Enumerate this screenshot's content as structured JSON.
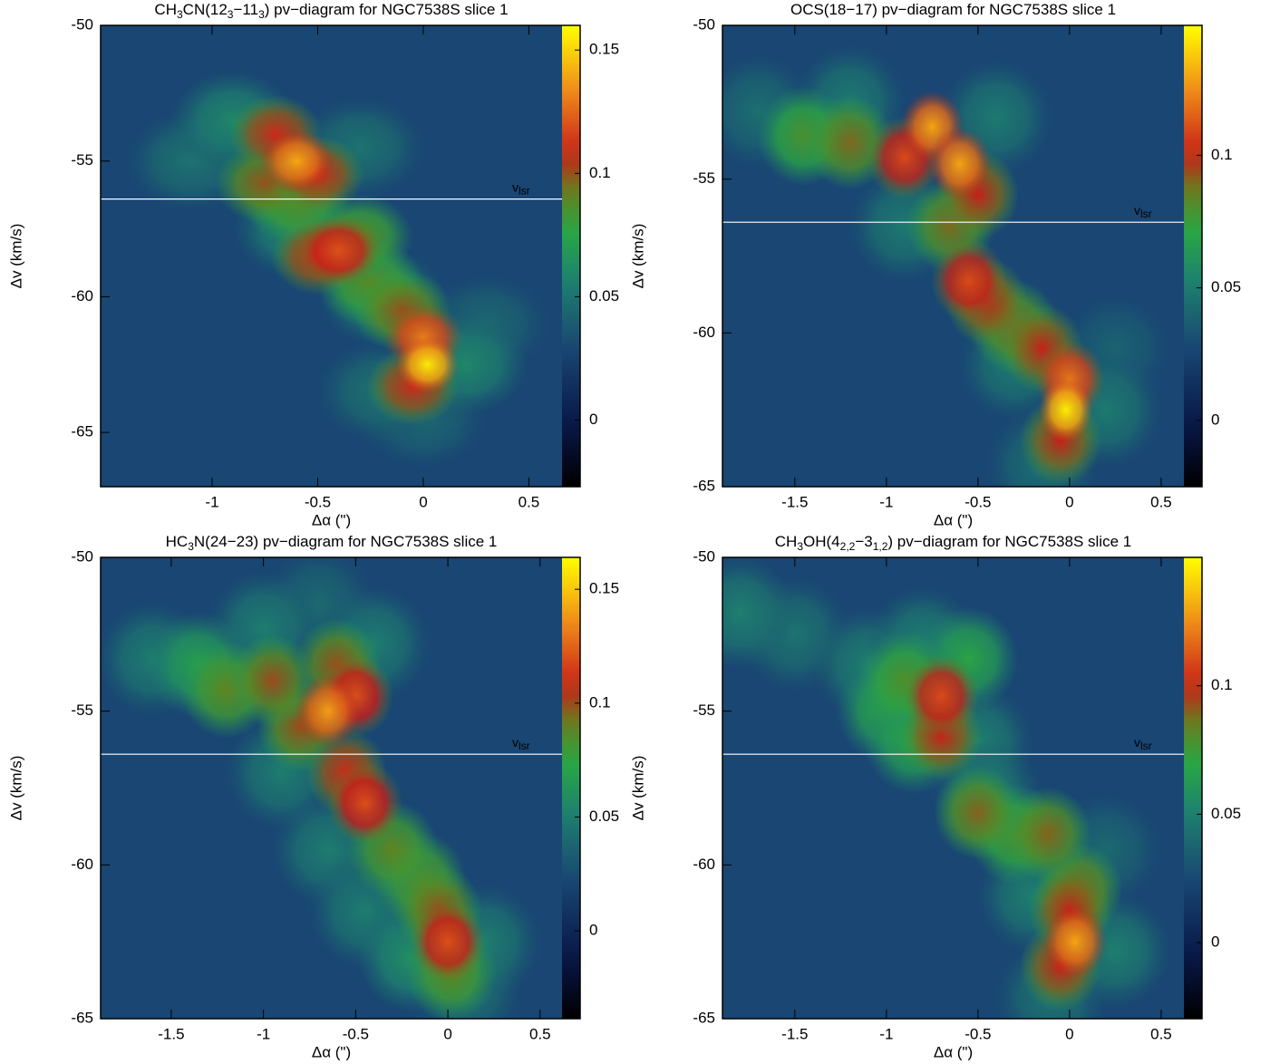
{
  "chart_data": [
    {
      "type": "heatmap",
      "title_parts": [
        {
          "text": "CH"
        },
        {
          "text": "3",
          "sub": true
        },
        {
          "text": "CN(12"
        },
        {
          "text": "3",
          "sub": true
        },
        {
          "text": "−11"
        },
        {
          "text": "3",
          "sub": true
        },
        {
          "text": ") pv−diagram for NGC7538S slice 1"
        }
      ],
      "xlabel": "Δα (\")",
      "ylabel": "Δv (km/s)",
      "xlim": [
        -1.528,
        0.657
      ],
      "ylim": [
        -50,
        -67
      ],
      "xticks": [
        -1,
        -0.5,
        0,
        0.5
      ],
      "yticks": [
        -50,
        -55,
        -60,
        -65
      ],
      "clim": [
        -0.027,
        0.16
      ],
      "cticks": [
        0,
        0.05,
        0.1,
        0.15
      ],
      "vlsr": {
        "value": -56.4,
        "label": "v",
        "label_sub": "lsr"
      },
      "points": {
        "x": [
          0.3,
          0,
          -0.3,
          -0.2,
          -1.1,
          0.2,
          -0.9,
          -0.2,
          -0.6,
          -0.25,
          -0.3,
          -0.6,
          -0.1,
          -0.75,
          -0.05,
          -0.5,
          -0.7,
          -0.5,
          -0.4,
          0,
          -0.6,
          0.02
        ],
        "y": [
          -61,
          -64.5,
          -54.5,
          -63.5,
          -55,
          -62.5,
          -53.5,
          -60,
          -57.5,
          -59.5,
          -57.8,
          -56.5,
          -60.5,
          -55.8,
          -63.3,
          -55.5,
          -54,
          -58.5,
          -58.3,
          -61.5,
          -55,
          -62.5
        ],
        "values": [
          0.045,
          0.045,
          0.05,
          0.05,
          0.05,
          0.06,
          0.06,
          0.06,
          0.06,
          0.09,
          0.09,
          0.09,
          0.1,
          0.1,
          0.11,
          0.11,
          0.11,
          0.11,
          0.12,
          0.13,
          0.14,
          0.155
        ]
      }
    },
    {
      "type": "heatmap",
      "title_parts": [
        {
          "text": "OCS(18−17) pv−diagram for NGC7538S slice 1"
        }
      ],
      "xlabel": "Δα (\")",
      "ylabel": "Δv (km/s)",
      "xlim": [
        -1.895,
        0.624
      ],
      "ylim": [
        -50,
        -65
      ],
      "xticks": [
        -1.5,
        -1,
        -0.5,
        0,
        0.5
      ],
      "yticks": [
        -50,
        -55,
        -60,
        -65
      ],
      "clim": [
        -0.025,
        0.149
      ],
      "cticks": [
        0,
        0.05,
        0.1
      ],
      "vlsr": {
        "value": -56.4,
        "label": "v",
        "label_sub": "lsr"
      },
      "points": {
        "x": [
          0.25,
          -1.7,
          -0.15,
          -1.2,
          -0.4,
          -0.9,
          -0.3,
          0.2,
          -1.45,
          -1.2,
          -0.3,
          -0.65,
          -0.05,
          -0.15,
          -0.45,
          -0.5,
          -0.9,
          -0.55,
          0,
          -0.75,
          -0.6,
          -0.02
        ],
        "y": [
          -60.5,
          -52.8,
          -64.3,
          -52.5,
          -53,
          -56.5,
          -61,
          -62.5,
          -53.6,
          -53.8,
          -59.8,
          -56.5,
          -63.5,
          -60.5,
          -59,
          -55.5,
          -54.3,
          -58.3,
          -61.5,
          -53.3,
          -54.5,
          -62.5
        ],
        "values": [
          0.04,
          0.045,
          0.045,
          0.05,
          0.05,
          0.05,
          0.05,
          0.05,
          0.08,
          0.09,
          0.09,
          0.09,
          0.1,
          0.1,
          0.1,
          0.1,
          0.11,
          0.11,
          0.12,
          0.13,
          0.13,
          0.145
        ]
      }
    },
    {
      "type": "heatmap",
      "title_parts": [
        {
          "text": "HC"
        },
        {
          "text": "3",
          "sub": true
        },
        {
          "text": "N(24−23) pv−diagram for NGC7538S slice 1"
        }
      ],
      "xlabel": "Δα (\")",
      "ylabel": "Δv (km/s)",
      "xlim": [
        -1.883,
        0.619
      ],
      "ylim": [
        -50,
        -65
      ],
      "xticks": [
        -1.5,
        -1,
        -0.5,
        0,
        0.5
      ],
      "yticks": [
        -50,
        -55,
        -60,
        -65
      ],
      "clim": [
        -0.0385,
        0.164
      ],
      "cticks": [
        0,
        0.05,
        0.1,
        0.15
      ],
      "vlsr": {
        "value": -56.4,
        "label": "v",
        "label_sub": "lsr"
      },
      "points": {
        "x": [
          -0.7,
          0.1,
          -1.6,
          -1.0,
          -0.4,
          -0.9,
          -0.65,
          -0.45,
          0.2,
          -0.2,
          -1.35,
          0.02,
          -0.15,
          -0.3,
          -1.2,
          -0.05,
          -0.8,
          -0.95,
          -0.6,
          -0.55,
          0,
          -0.45,
          -0.5,
          -0.65
        ],
        "y": [
          -51.5,
          -64,
          -53.3,
          -52.3,
          -52.8,
          -57,
          -59.5,
          -61.5,
          -62.5,
          -63,
          -53.5,
          -63.5,
          -60.5,
          -59.5,
          -54.3,
          -61.5,
          -55.5,
          -54,
          -53.5,
          -57,
          -62.5,
          -58,
          -54.5,
          -55
        ],
        "values": [
          0.04,
          0.045,
          0.05,
          0.05,
          0.05,
          0.05,
          0.05,
          0.05,
          0.05,
          0.06,
          0.07,
          0.09,
          0.09,
          0.09,
          0.09,
          0.1,
          0.1,
          0.1,
          0.1,
          0.11,
          0.12,
          0.12,
          0.12,
          0.14
        ]
      }
    },
    {
      "type": "heatmap",
      "title_parts": [
        {
          "text": "CH"
        },
        {
          "text": "3",
          "sub": true
        },
        {
          "text": "OH(4"
        },
        {
          "text": "2,2",
          "sub": true
        },
        {
          "text": "−3"
        },
        {
          "text": "1,2",
          "sub": true
        },
        {
          "text": ") pv−diagram for NGC7538S slice 1"
        }
      ],
      "xlabel": "Δα (\")",
      "ylabel": "Δv (km/s)",
      "xlim": [
        -1.895,
        0.624
      ],
      "ylim": [
        -50,
        -65
      ],
      "xticks": [
        -1.5,
        -1,
        -0.5,
        0,
        0.5
      ],
      "yticks": [
        -50,
        -55,
        -60,
        -65
      ],
      "clim": [
        -0.0296,
        0.15
      ],
      "cticks": [
        0,
        0.05,
        0.1
      ],
      "vlsr": {
        "value": -56.4,
        "label": "v",
        "label_sub": "lsr"
      },
      "points": {
        "x": [
          0.2,
          -1.5,
          -0.1,
          -1.8,
          -1.1,
          -0.8,
          -0.5,
          -0.45,
          0.25,
          -0.2,
          -1.0,
          -0.85,
          -0.55,
          -0.3,
          0.05,
          -0.12,
          -0.5,
          -0.9,
          0,
          -0.05,
          -0.7,
          -0.7,
          0.03
        ],
        "y": [
          -59.5,
          -52.5,
          -64.3,
          -51.8,
          -53.5,
          -52.8,
          -56,
          -57.8,
          -62.8,
          -61,
          -55,
          -56,
          -53.3,
          -59,
          -60.8,
          -59,
          -58.3,
          -54,
          -61.5,
          -63.3,
          -55.8,
          -54.5,
          -62.5
        ],
        "values": [
          0.04,
          0.045,
          0.045,
          0.05,
          0.05,
          0.05,
          0.05,
          0.05,
          0.05,
          0.05,
          0.07,
          0.07,
          0.07,
          0.08,
          0.09,
          0.09,
          0.09,
          0.08,
          0.1,
          0.1,
          0.1,
          0.11,
          0.13
        ]
      }
    }
  ]
}
